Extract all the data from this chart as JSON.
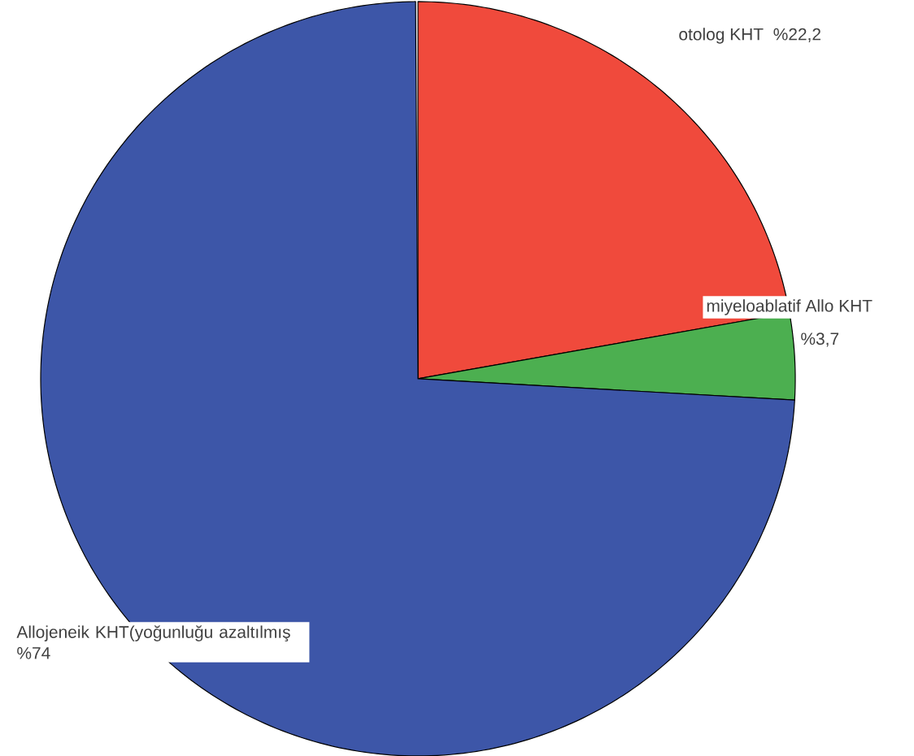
{
  "chart_data": {
    "type": "pie",
    "categories": [
      "otolog KHT",
      "miyeloablatif Allo KHT",
      "Allojeneik KHT(yoğunluğu azaltılmış"
    ],
    "values": [
      22.2,
      3.7,
      74
    ],
    "value_labels": [
      "%22,2",
      "%3,7",
      "%74"
    ],
    "colors": [
      "#f04a3c",
      "#4caf50",
      "#3d56a8"
    ]
  }
}
